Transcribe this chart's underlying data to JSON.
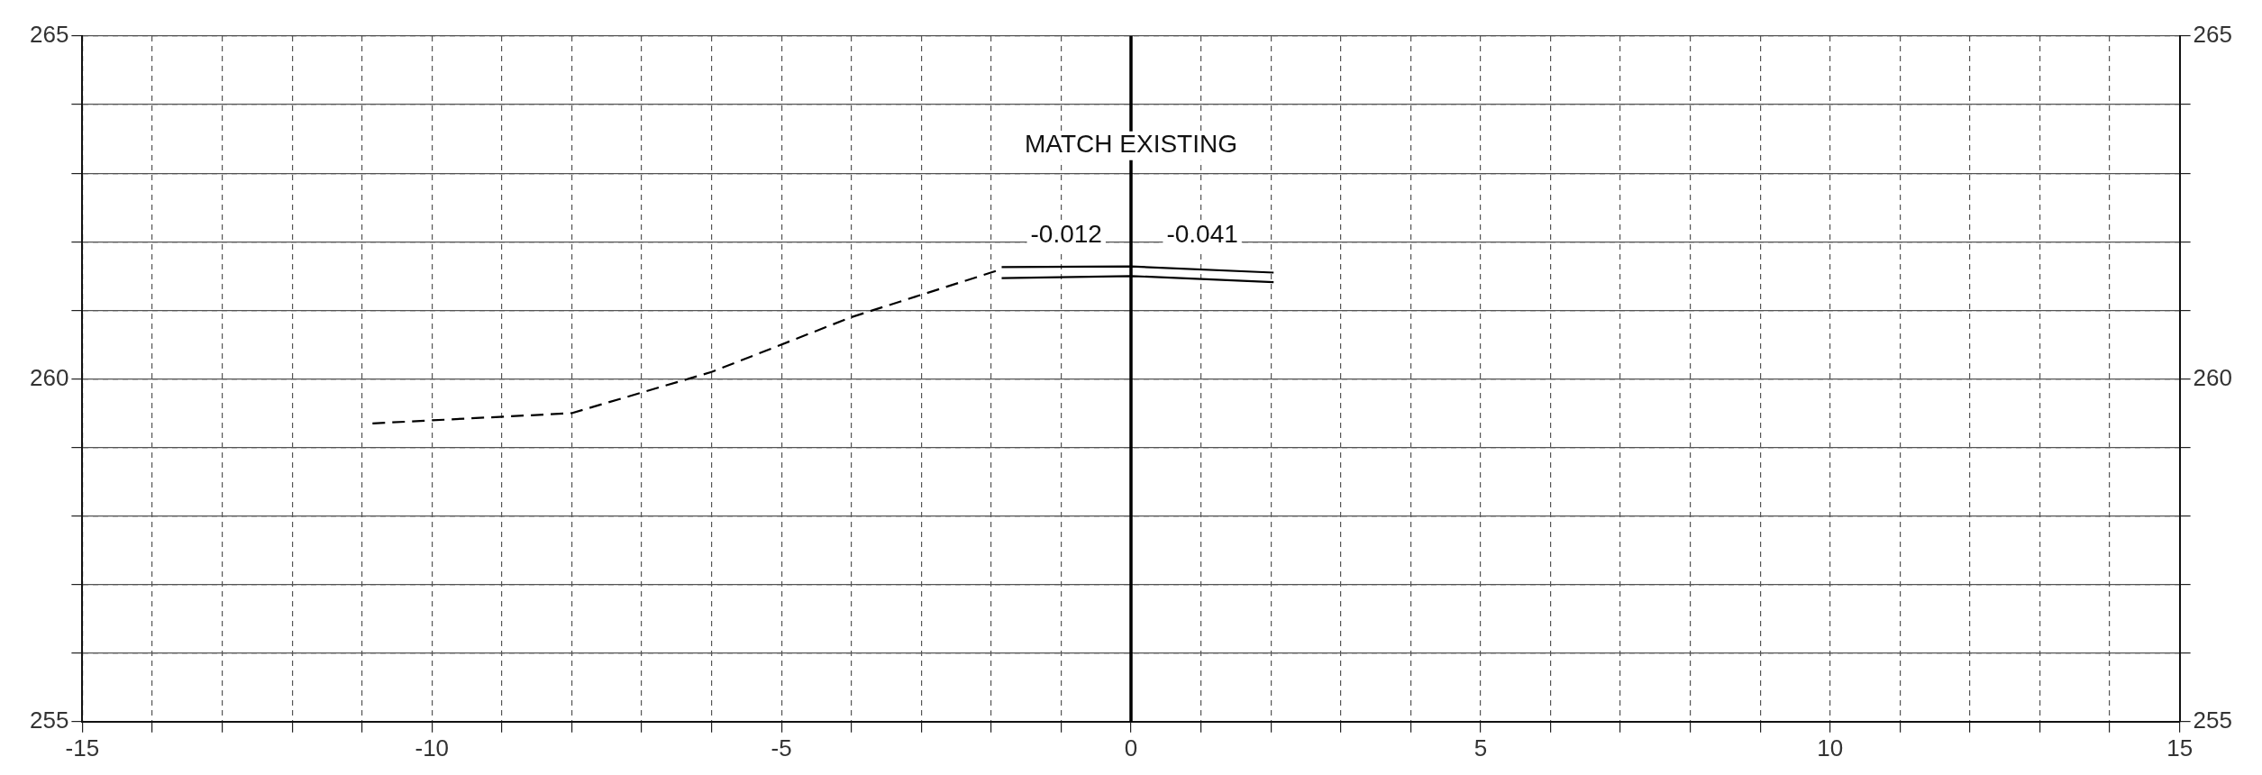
{
  "chart_data": {
    "type": "line",
    "xlim": [
      -15,
      15
    ],
    "xticks": [
      -15,
      {
        "value": -14,
        "label": null
      },
      {
        "value": -13,
        "label": null
      },
      {
        "value": -12,
        "label": null
      },
      {
        "value": -11,
        "label": null
      },
      -10,
      {
        "value": -9,
        "label": null
      },
      {
        "value": -8,
        "label": null
      },
      {
        "value": -7,
        "label": null
      },
      {
        "value": -6,
        "label": null
      },
      -5,
      {
        "value": -4,
        "label": null
      },
      {
        "value": -3,
        "label": null
      },
      {
        "value": -2,
        "label": null
      },
      {
        "value": -1,
        "label": null
      },
      0,
      {
        "value": 1,
        "label": null
      },
      {
        "value": 2,
        "label": null
      },
      {
        "value": 3,
        "label": null
      },
      {
        "value": 4,
        "label": null
      },
      5,
      {
        "value": 6,
        "label": null
      },
      {
        "value": 7,
        "label": null
      },
      {
        "value": 8,
        "label": null
      },
      {
        "value": 9,
        "label": null
      },
      10,
      {
        "value": 11,
        "label": null
      },
      {
        "value": 12,
        "label": null
      },
      {
        "value": 13,
        "label": null
      },
      {
        "value": 14,
        "label": null
      },
      15
    ],
    "ylim": [
      255,
      265
    ],
    "yticks": [
      255,
      {
        "value": 256,
        "label": null
      },
      {
        "value": 257,
        "label": null
      },
      {
        "value": 258,
        "label": null
      },
      {
        "value": 259,
        "label": null
      },
      260,
      {
        "value": 261,
        "label": null
      },
      {
        "value": 262,
        "label": null
      },
      {
        "value": 263,
        "label": null
      },
      {
        "value": 264,
        "label": null
      },
      265
    ],
    "y2lim": [
      255,
      265
    ],
    "y2ticks": [
      255,
      {
        "value": 256,
        "label": null
      },
      {
        "value": 257,
        "label": null
      },
      {
        "value": 258,
        "label": null
      },
      {
        "value": 259,
        "label": null
      },
      260,
      {
        "value": 261,
        "label": null
      },
      {
        "value": 262,
        "label": null
      },
      {
        "value": 263,
        "label": null
      },
      {
        "value": 264,
        "label": null
      },
      265
    ],
    "grid": true,
    "legend": false,
    "marker": "none",
    "series": [
      {
        "color": "#000000",
        "line_style": "dashed",
        "x": [
          -10.85,
          -8,
          -6,
          -4,
          -1.85
        ],
        "values": [
          259.35,
          259.5,
          260.1,
          260.9,
          261.6
        ]
      },
      {
        "color": "#000000",
        "line_style": "solid",
        "x": [
          -1.85,
          0,
          2.04
        ],
        "values": [
          261.63,
          261.64,
          261.55
        ]
      },
      {
        "color": "#000000",
        "line_style": "solid",
        "x": [
          -1.85,
          0,
          2.04
        ],
        "values": [
          261.47,
          261.5,
          261.41
        ]
      }
    ],
    "ref_lines": [
      {
        "axis": "x",
        "value": 0,
        "color": "#000000",
        "line_style": "solid"
      }
    ],
    "annotations": [
      {
        "text": "MATCH EXISTING",
        "x": 0,
        "y": 263.4
      },
      "-0.012",
      "-0.041"
    ]
  }
}
